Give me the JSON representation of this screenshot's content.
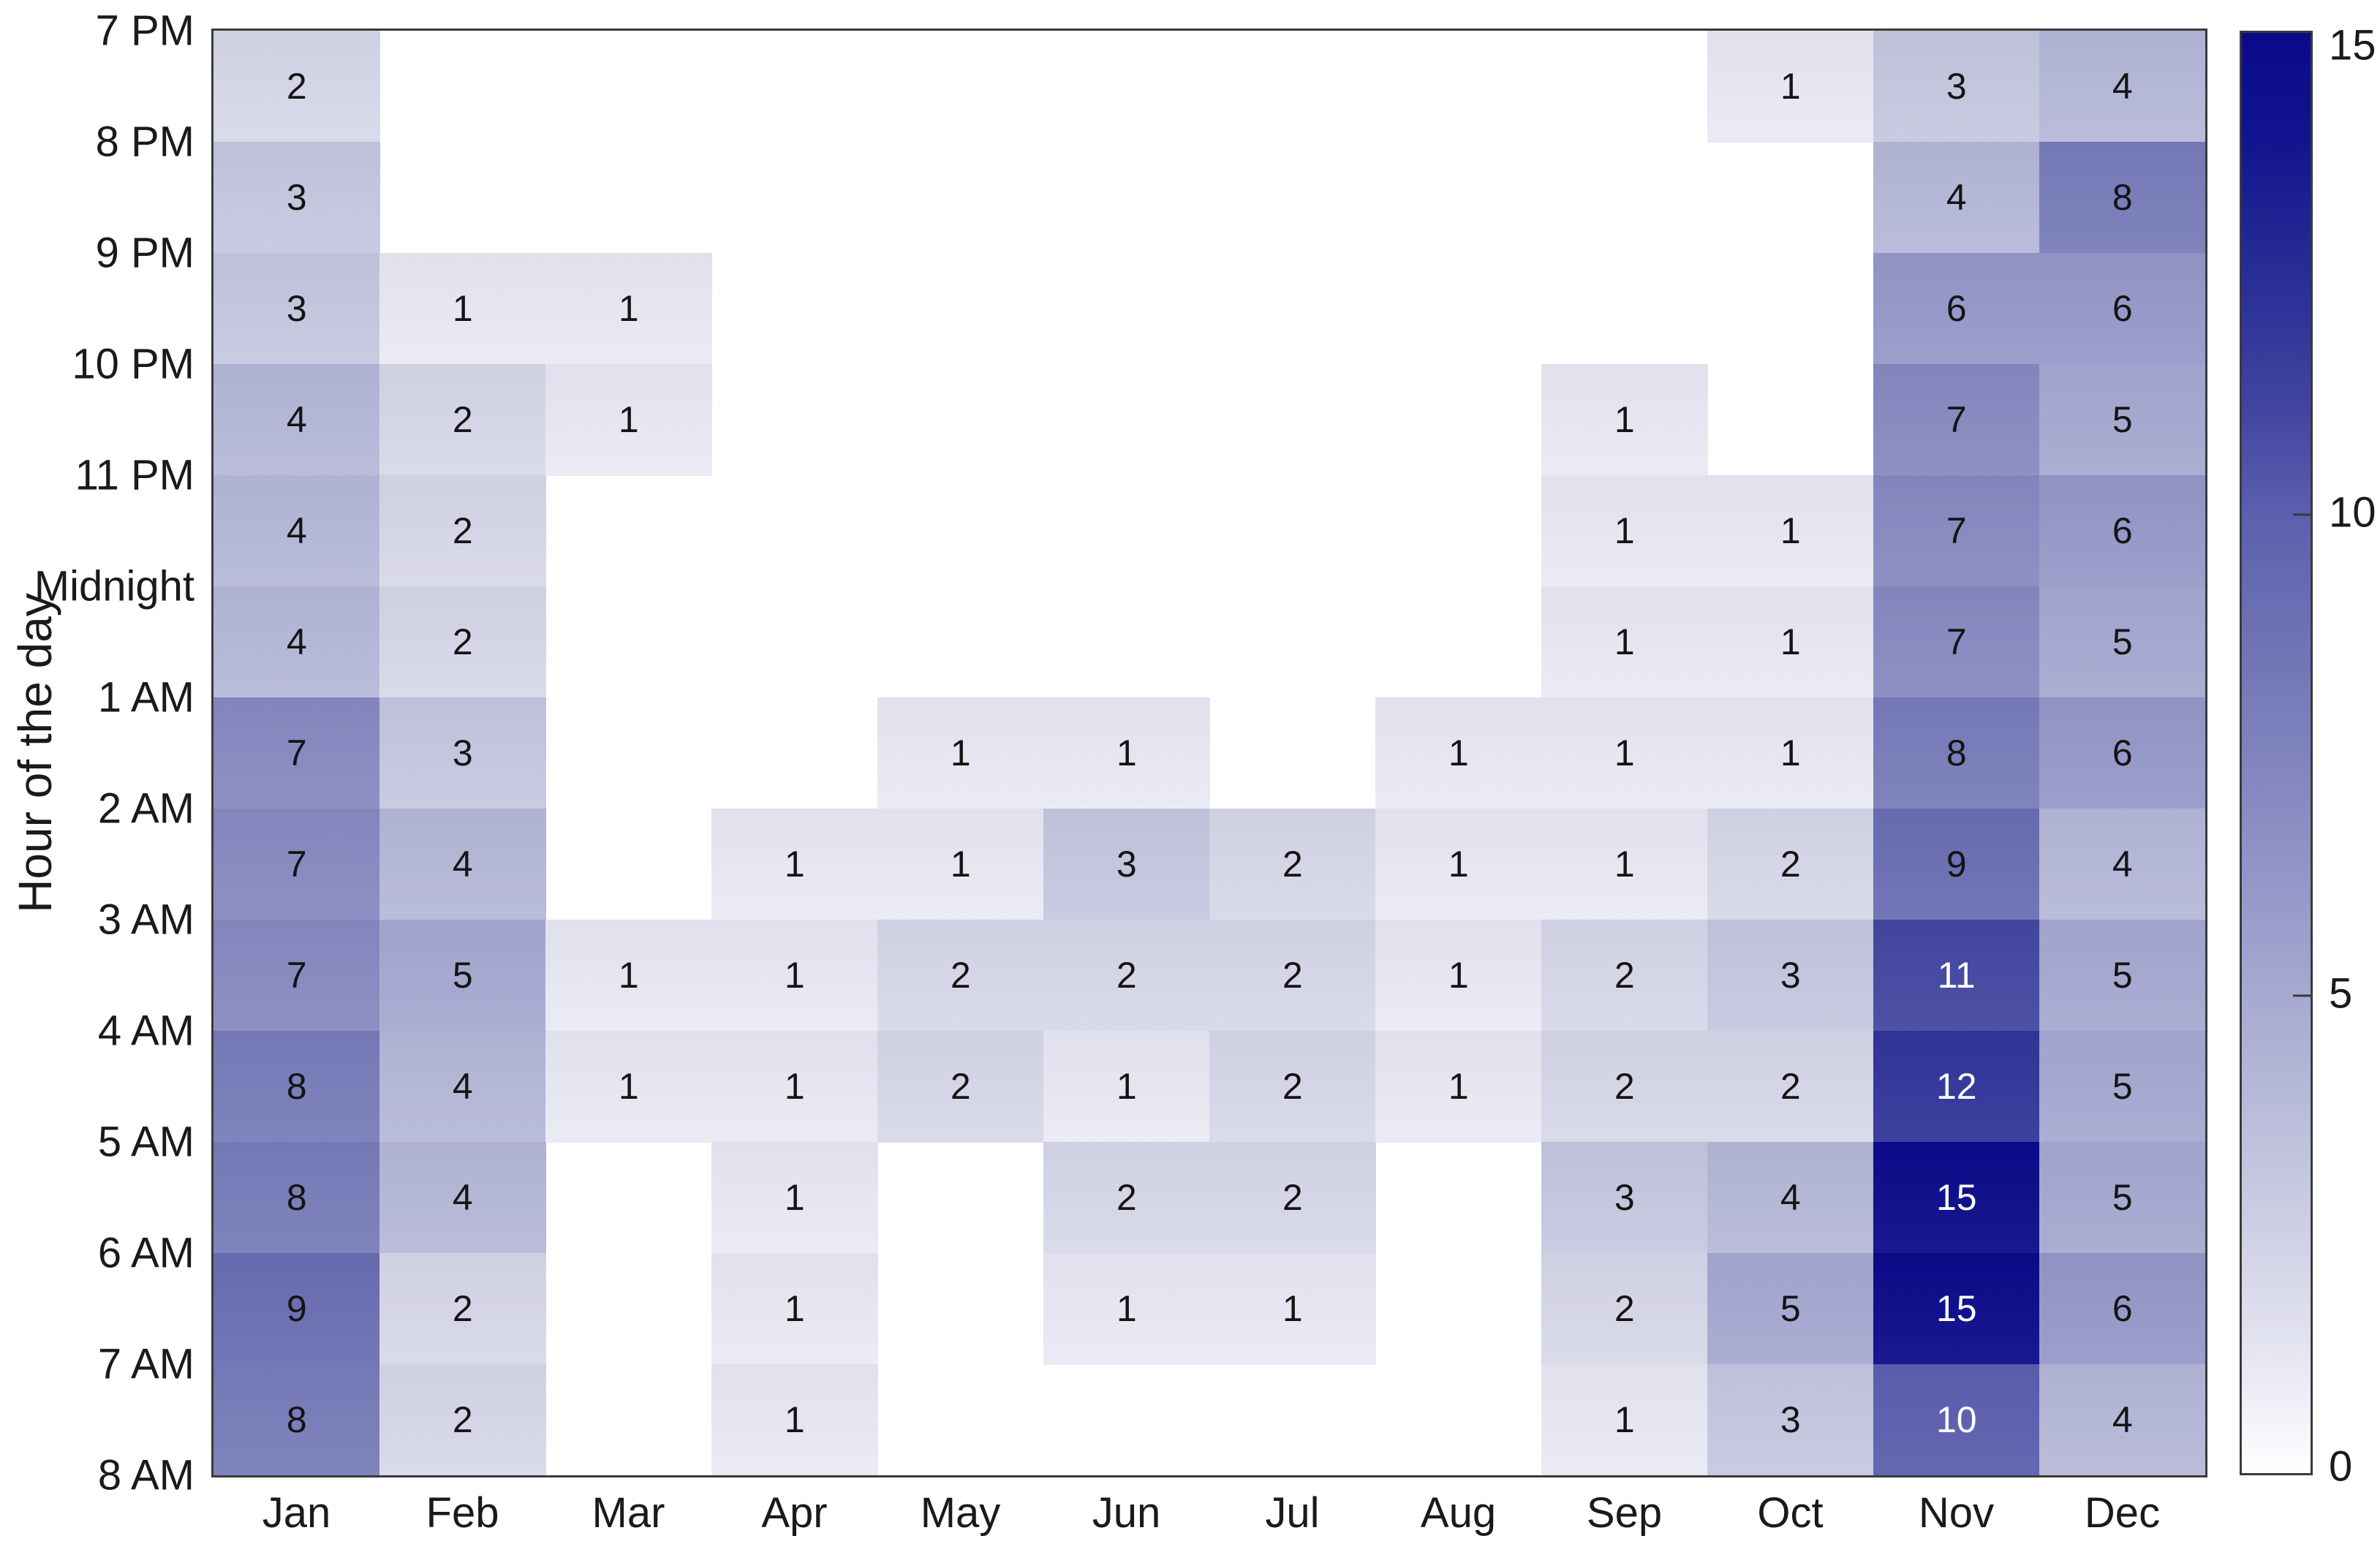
{
  "chart_data": {
    "type": "heatmap",
    "title": "",
    "xlabel": "",
    "ylabel": "Hour of the day",
    "x_categories": [
      "Jan",
      "Feb",
      "Mar",
      "Apr",
      "May",
      "Jun",
      "Jul",
      "Aug",
      "Sep",
      "Oct",
      "Nov",
      "Dec"
    ],
    "y_boundary_labels": [
      "7 PM",
      "8 PM",
      "9 PM",
      "10 PM",
      "11 PM",
      "Midnight",
      "1 AM",
      "2 AM",
      "3 AM",
      "4 AM",
      "5 AM",
      "6 AM",
      "7 AM",
      "8 AM"
    ],
    "rows": [
      [
        2,
        null,
        null,
        null,
        null,
        null,
        null,
        null,
        null,
        1,
        3,
        4
      ],
      [
        3,
        null,
        null,
        null,
        null,
        null,
        null,
        null,
        null,
        null,
        4,
        8
      ],
      [
        3,
        1,
        1,
        null,
        null,
        null,
        null,
        null,
        null,
        null,
        6,
        6
      ],
      [
        4,
        2,
        1,
        null,
        null,
        null,
        null,
        null,
        1,
        null,
        7,
        5
      ],
      [
        4,
        2,
        null,
        null,
        null,
        null,
        null,
        null,
        1,
        1,
        7,
        6
      ],
      [
        4,
        2,
        null,
        null,
        null,
        null,
        null,
        null,
        1,
        1,
        7,
        5
      ],
      [
        7,
        3,
        null,
        null,
        1,
        1,
        null,
        1,
        1,
        1,
        8,
        6
      ],
      [
        7,
        4,
        null,
        1,
        1,
        3,
        2,
        1,
        1,
        2,
        9,
        4
      ],
      [
        7,
        5,
        1,
        1,
        2,
        2,
        2,
        1,
        2,
        3,
        11,
        5
      ],
      [
        8,
        4,
        1,
        1,
        2,
        1,
        2,
        1,
        2,
        2,
        12,
        5
      ],
      [
        8,
        4,
        null,
        1,
        null,
        2,
        2,
        null,
        3,
        4,
        15,
        5
      ],
      [
        9,
        2,
        null,
        1,
        null,
        1,
        1,
        null,
        2,
        5,
        15,
        6
      ],
      [
        8,
        2,
        null,
        1,
        null,
        null,
        null,
        null,
        1,
        3,
        10,
        4
      ]
    ],
    "vmin": 0,
    "vmax": 15,
    "colorbar_ticks": [
      0,
      5,
      10,
      15
    ],
    "colormap_stops": [
      "#ffffff",
      "#e9eaf4",
      "#d7d8e9",
      "#c6c8e0",
      "#b6b8d8",
      "#a6a9d0",
      "#9699c8",
      "#878ac1",
      "#787cb9",
      "#6a6eb2",
      "#5b5fae",
      "#4347a0",
      "#303599",
      "#202492",
      "#10128e",
      "#0a0a8a"
    ],
    "white_text_threshold": 10,
    "grid": false,
    "legend_position": "colorbar-right"
  },
  "colors": {
    "background": "#ffffff",
    "axis_border": "#3a3a3a",
    "text": "#1a1a1a",
    "cell_text_dark": "#141414",
    "cell_text_light": "#ffffff"
  }
}
